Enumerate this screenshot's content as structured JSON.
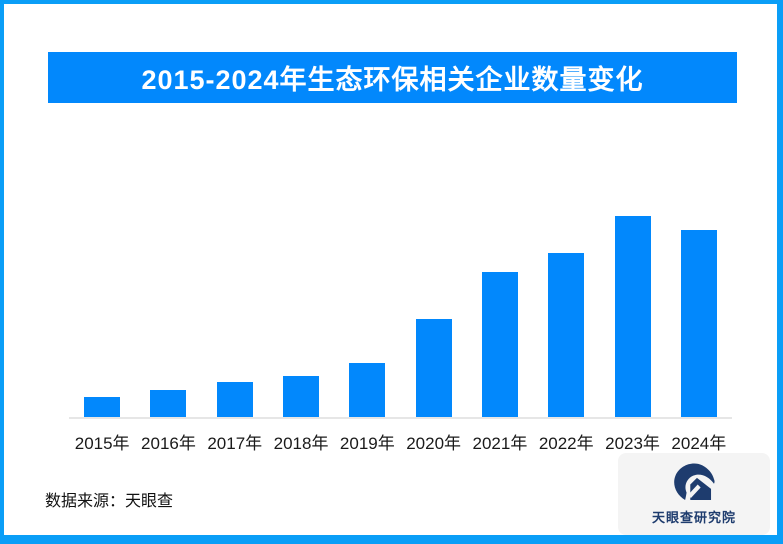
{
  "frame": {
    "border_color": "#0a9ef7",
    "background": "#ffffff"
  },
  "header": {
    "title": "2015-2024年生态环保相关企业数量变化",
    "background": "#0288fc",
    "text_color": "#ffffff"
  },
  "chart_data": {
    "type": "bar",
    "title": "2015-2024年生态环保相关企业数量变化",
    "categories": [
      "2015年",
      "2016年",
      "2017年",
      "2018年",
      "2019年",
      "2020年",
      "2021年",
      "2022年",
      "2023年",
      "2024年"
    ],
    "values": [
      10,
      13.4,
      17.4,
      20.4,
      26.9,
      48.8,
      72.3,
      81.7,
      100,
      93
    ],
    "value_units": "relative bar height, normalized to 2023 = 100 (chart displays no y-axis, gridlines or data labels)",
    "bar_color": "#0288fc",
    "axis_line_color": "#e6e6e6",
    "xlabel": "",
    "ylabel": "",
    "ylim": [
      0,
      100
    ],
    "grid": false,
    "legend": false
  },
  "footer": {
    "source_label": "数据来源：天眼查",
    "logo": {
      "icon": "tianyancha-eye-swoosh",
      "icon_color": "#1e3c6e",
      "text": "天眼查研究院",
      "text_color": "#1e3c6e",
      "background": "#f4f4f4"
    }
  }
}
